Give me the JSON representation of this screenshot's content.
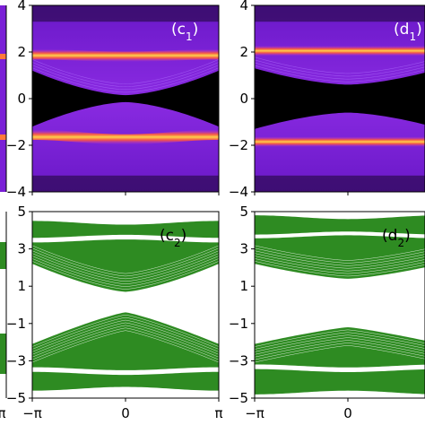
{
  "chart_data": [
    {
      "id": "c1",
      "label": "(c",
      "sub": "1",
      "label_close": ")",
      "label_color": "#ffffff",
      "type": "heatmap",
      "xlim": [
        -3.14159,
        3.14159
      ],
      "ylim": [
        -4,
        4
      ],
      "yticks": [
        4,
        2,
        0,
        -2,
        -4
      ],
      "ytick_labels": [
        "4",
        "2",
        "0",
        "−2",
        "−4"
      ],
      "xticks": [
        -3.14159,
        0,
        3.14159
      ],
      "bands": [
        {
          "level": 1.85,
          "dip": 0.05
        },
        {
          "level": -1.65,
          "dip": 0.1
        }
      ],
      "gap_half_width_center": 0.15,
      "gap_half_width_edge": 1.2
    },
    {
      "id": "d1",
      "label": "(d",
      "sub": "1",
      "label_close": ")",
      "label_color": "#ffffff",
      "type": "heatmap",
      "xlim": [
        -3.14159,
        3.14159
      ],
      "ylim": [
        -4,
        4
      ],
      "yticks": [
        4,
        2,
        0,
        -2,
        -4
      ],
      "ytick_labels": [
        "4",
        "2",
        "0",
        "−2",
        "−4"
      ],
      "xticks": [
        -3.14159,
        0,
        3.14159
      ],
      "bands": [
        {
          "level": 2.05,
          "dip": 0.0
        },
        {
          "level": -1.85,
          "dip": 0.0
        }
      ],
      "gap_half_width_center": 0.6,
      "gap_half_width_edge": 1.3
    },
    {
      "id": "c2",
      "label": "(c",
      "sub": "2",
      "label_close": ")",
      "label_color": "#000000",
      "type": "area",
      "xlim": [
        -3.14159,
        3.14159
      ],
      "ylim": [
        -5,
        5
      ],
      "yticks": [
        5,
        3,
        1,
        -1,
        -3,
        -5
      ],
      "ytick_labels": [
        "5",
        "3",
        "1",
        "−1",
        "−3",
        "−5"
      ],
      "xticks": [
        -3.14159,
        0,
        3.14159
      ],
      "xtick_labels": [
        "−π",
        "0",
        "π"
      ],
      "fill_color": "#2e8b22",
      "upper_gap_center": 0.7,
      "upper_gap_edge": 2.2,
      "upper_top": 4.4,
      "lower_top_center": -0.4,
      "lower_top_edge": -2.1,
      "lower_bottom": -4.5,
      "splits": [
        {
          "center": 3.55,
          "width": 0.25
        },
        {
          "center": -3.55,
          "width": 0.25
        }
      ]
    },
    {
      "id": "d2",
      "label": "(d",
      "sub": "2",
      "label_close": ")",
      "label_color": "#000000",
      "type": "area",
      "xlim": [
        -3.14159,
        3.14159
      ],
      "ylim": [
        -5,
        5
      ],
      "yticks": [
        5,
        3,
        1,
        -1,
        -3,
        -5
      ],
      "ytick_labels": [
        "5",
        "3",
        "1",
        "−1",
        "−3",
        "−5"
      ],
      "xticks": [
        -3.14159,
        0,
        3.14159
      ],
      "xtick_labels": [
        "−π",
        "0",
        "π"
      ],
      "fill_color": "#2e8b22",
      "upper_gap_center": 1.4,
      "upper_gap_edge": 2.2,
      "upper_top": 4.7,
      "lower_top_center": -1.2,
      "lower_top_edge": -2.1,
      "lower_bottom": -4.7,
      "splits": [
        {
          "center": 3.75,
          "width": 0.2
        },
        {
          "center": -3.4,
          "width": 0.25
        }
      ]
    }
  ],
  "left_strip": {
    "top_tick_label_edge": "π",
    "colors": {
      "heat_bg": "#7a1fd6",
      "green": "#2e8b22"
    }
  }
}
